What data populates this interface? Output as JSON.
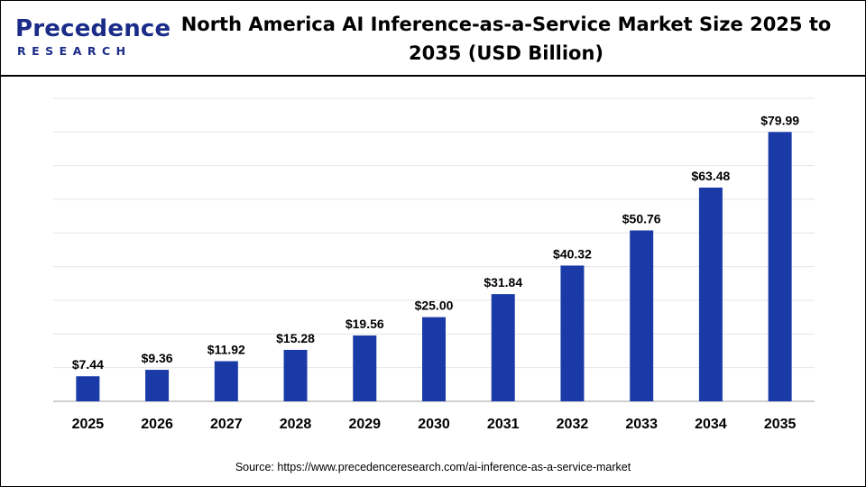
{
  "header": {
    "logo_word": "Precedence",
    "logo_sub": "RESEARCH",
    "title": "North America AI Inference-as-a-Service Market Size 2025 to 2035 (USD Billion)"
  },
  "footer": {
    "source": "Source: https://www.precedenceresearch.com/ai-inference-as-a-service-market"
  },
  "colors": {
    "bar": "#1a3aa8",
    "logo": "#1a2b88",
    "grid": "#e6e6e6"
  },
  "chart_data": {
    "type": "bar",
    "title": "North America AI Inference-as-a-Service Market Size 2025 to 2035 (USD Billion)",
    "categories": [
      "2025",
      "2026",
      "2027",
      "2028",
      "2029",
      "2030",
      "2031",
      "2032",
      "2033",
      "2034",
      "2035"
    ],
    "values": [
      7.44,
      9.36,
      11.92,
      15.28,
      19.56,
      25.0,
      31.84,
      40.32,
      50.76,
      63.48,
      79.99
    ],
    "labels": [
      "$7.44",
      "$9.36",
      "$11.92",
      "$15.28",
      "$19.56",
      "$25.00",
      "$31.84",
      "$40.32",
      "$50.76",
      "$63.48",
      "$79.99"
    ],
    "ylim": [
      0,
      90
    ],
    "grid": true,
    "legend": "none"
  }
}
